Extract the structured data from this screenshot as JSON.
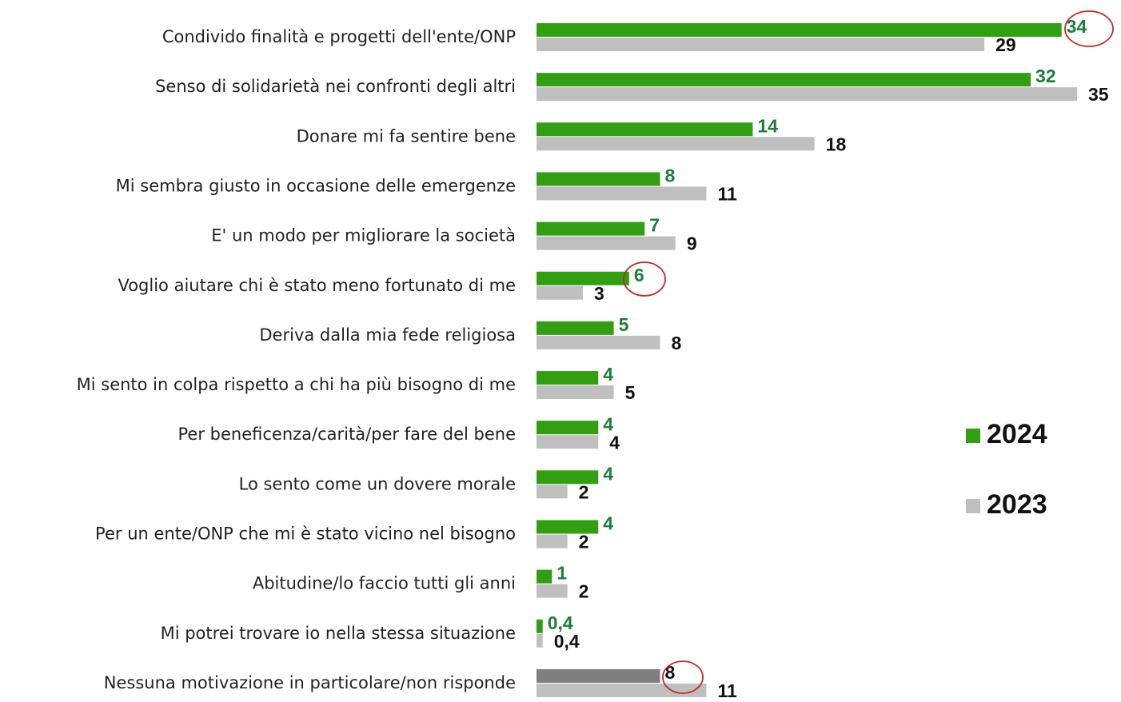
{
  "chart_data": {
    "type": "hbar",
    "categories": [
      "Condivido finalità e progetti dell'ente/ONP",
      "Senso di solidarietà nei confronti degli altri",
      "Donare mi fa sentire bene",
      "Mi sembra giusto in occasione delle emergenze",
      "E' un modo per migliorare la società",
      "Voglio aiutare chi è stato meno fortunato di me",
      "Deriva dalla mia fede religiosa",
      "Mi sento in colpa rispetto a chi ha più bisogno di me",
      "Per beneficenza/carità/per fare del bene",
      "Lo sento come un dovere morale",
      "Per un ente/ONP che mi è stato vicino nel bisogno",
      "Abitudine/lo faccio tutti gli anni",
      "Mi potrei trovare io nella stessa situazione",
      "Nessuna motivazione in particolare/non risponde"
    ],
    "series": [
      {
        "name": "2024",
        "color": "#339e14",
        "colors": [
          "#339e14",
          "#339e14",
          "#339e14",
          "#339e14",
          "#339e14",
          "#339e14",
          "#339e14",
          "#339e14",
          "#339e14",
          "#339e14",
          "#339e14",
          "#339e14",
          "#339e14",
          "#7f7f7f"
        ],
        "label_colors": [
          "#1d7d3c",
          "#1d7d3c",
          "#1d7d3c",
          "#1d7d3c",
          "#1d7d3c",
          "#1d7d3c",
          "#1d7d3c",
          "#1d7d3c",
          "#1d7d3c",
          "#1d7d3c",
          "#1d7d3c",
          "#1d7d3c",
          "#1d7d3c",
          "#111111"
        ],
        "values": [
          34,
          32,
          14,
          8,
          7,
          6,
          5,
          4,
          4,
          4,
          4,
          1,
          0.4,
          8
        ],
        "value_labels": [
          "34",
          "32",
          "14",
          "8",
          "7",
          "6",
          "5",
          "4",
          "4",
          "4",
          "4",
          "1",
          "0,4",
          "8"
        ]
      },
      {
        "name": "2023",
        "color": "#bfbfbf",
        "values": [
          29,
          35,
          18,
          11,
          9,
          3,
          8,
          5,
          4,
          2,
          2,
          2,
          0.4,
          11
        ],
        "value_labels": [
          "29",
          "35",
          "18",
          "11",
          "9",
          "3",
          "8",
          "5",
          "4",
          "2",
          "2",
          "2",
          "0,4",
          "11"
        ]
      }
    ]
  }
}
